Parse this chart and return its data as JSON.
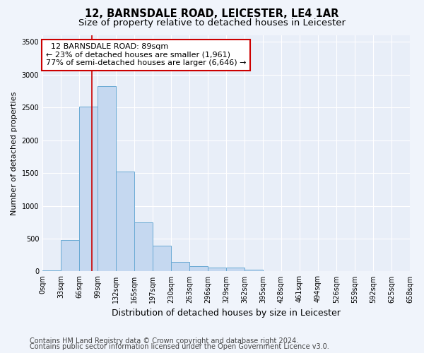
{
  "title": "12, BARNSDALE ROAD, LEICESTER, LE4 1AR",
  "subtitle": "Size of property relative to detached houses in Leicester",
  "xlabel": "Distribution of detached houses by size in Leicester",
  "ylabel": "Number of detached properties",
  "bar_values": [
    20,
    480,
    2510,
    2820,
    1520,
    750,
    390,
    140,
    80,
    60,
    60,
    30,
    0,
    0,
    0,
    0,
    0,
    0,
    0,
    0
  ],
  "bin_labels": [
    "0sqm",
    "33sqm",
    "66sqm",
    "99sqm",
    "132sqm",
    "165sqm",
    "197sqm",
    "230sqm",
    "263sqm",
    "296sqm",
    "329sqm",
    "362sqm",
    "395sqm",
    "428sqm",
    "461sqm",
    "494sqm",
    "526sqm",
    "559sqm",
    "592sqm",
    "625sqm",
    "658sqm"
  ],
  "bar_color": "#c5d8f0",
  "bar_edge_color": "#6aaad4",
  "vline_x": 2.7,
  "vline_color": "#cc0000",
  "annotation_text": "  12 BARNSDALE ROAD: 89sqm\n← 23% of detached houses are smaller (1,961)\n77% of semi-detached houses are larger (6,646) →",
  "annotation_box_color": "#ffffff",
  "annotation_edge_color": "#cc0000",
  "ylim": [
    0,
    3600
  ],
  "yticks": [
    0,
    500,
    1000,
    1500,
    2000,
    2500,
    3000,
    3500
  ],
  "background_color": "#f0f4fb",
  "axes_background": "#e8eef8",
  "grid_color": "#ffffff",
  "footer_line1": "Contains HM Land Registry data © Crown copyright and database right 2024.",
  "footer_line2": "Contains public sector information licensed under the Open Government Licence v3.0.",
  "title_fontsize": 10.5,
  "subtitle_fontsize": 9.5,
  "annotation_fontsize": 8,
  "ylabel_fontsize": 8,
  "xlabel_fontsize": 9,
  "footer_fontsize": 7,
  "tick_fontsize": 7
}
